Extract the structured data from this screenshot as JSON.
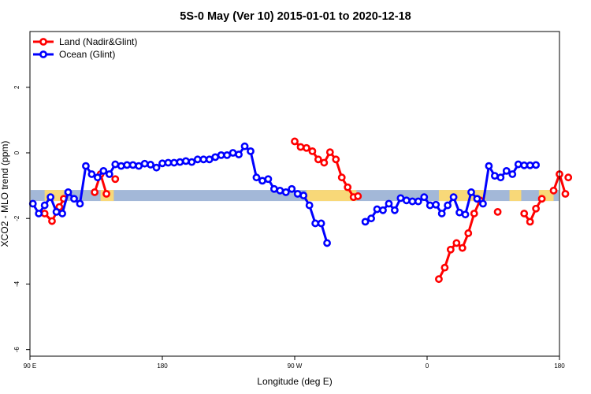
{
  "chart_data": {
    "type": "line",
    "title": "5S-0 May (Ver 10)   2015-01-01 to 2020-12-18",
    "xlabel": "Longitude (deg E)",
    "ylabel": "XCO2 - MLO trend (ppm)",
    "xlim": [
      90,
      450
    ],
    "ylim": [
      -6.2,
      3.7
    ],
    "x_ticks": [
      {
        "value": 90,
        "label": "90 E"
      },
      {
        "value": 180,
        "label": "180"
      },
      {
        "value": 270,
        "label": "90 W"
      },
      {
        "value": 360,
        "label": "0"
      },
      {
        "value": 450,
        "label": "180"
      }
    ],
    "y_ticks": [
      {
        "value": -6,
        "label": "-6"
      },
      {
        "value": -4,
        "label": "-4"
      },
      {
        "value": -2,
        "label": "-2"
      },
      {
        "value": 0,
        "label": "0"
      },
      {
        "value": 2,
        "label": "2"
      }
    ],
    "grid": false,
    "legend_position": "top-left",
    "band": {
      "y": -1.3,
      "base_color": "#a3b8d8",
      "land_color": "#f8d878",
      "land_segments": [
        [
          100,
          113
        ],
        [
          138,
          147
        ],
        [
          278,
          312
        ],
        [
          368,
          400
        ],
        [
          416,
          424
        ],
        [
          436,
          446
        ]
      ]
    },
    "series": [
      {
        "name": "Land (Nadir&Glint)",
        "color": "#ff0000",
        "segments": [
          [
            [
              100,
              -1.85
            ],
            [
              105,
              -2.08
            ],
            [
              110,
              -1.65
            ],
            [
              113,
              -1.4
            ]
          ],
          [
            [
              134,
              -1.2
            ],
            [
              138,
              -0.65
            ],
            [
              142,
              -1.25
            ]
          ],
          [
            [
              148,
              -0.8
            ]
          ],
          [
            [
              270,
              0.35
            ],
            [
              274,
              0.18
            ],
            [
              278,
              0.15
            ],
            [
              282,
              0.05
            ],
            [
              286,
              -0.2
            ],
            [
              290,
              -0.3
            ],
            [
              294,
              0.02
            ],
            [
              298,
              -0.2
            ],
            [
              302,
              -0.75
            ],
            [
              306,
              -1.05
            ],
            [
              310,
              -1.35
            ],
            [
              313,
              -1.32
            ]
          ],
          [
            [
              368,
              -3.85
            ],
            [
              372,
              -3.5
            ],
            [
              376,
              -2.95
            ],
            [
              380,
              -2.75
            ],
            [
              384,
              -2.9
            ],
            [
              388,
              -2.45
            ],
            [
              392,
              -1.85
            ],
            [
              396,
              -1.45
            ]
          ],
          [
            [
              408,
              -1.8
            ]
          ],
          [
            [
              426,
              -1.85
            ],
            [
              430,
              -2.1
            ],
            [
              434,
              -1.7
            ],
            [
              438,
              -1.4
            ]
          ],
          [
            [
              446,
              -1.15
            ],
            [
              450,
              -0.65
            ],
            [
              454,
              -1.25
            ]
          ],
          [
            [
              456,
              -0.75
            ]
          ]
        ]
      },
      {
        "name": "Ocean (Glint)",
        "color": "#0000ff",
        "segments": [
          [
            [
              92,
              -1.55
            ],
            [
              96,
              -1.85
            ],
            [
              100,
              -1.6
            ],
            [
              104,
              -1.35
            ],
            [
              108,
              -1.8
            ],
            [
              112,
              -1.85
            ],
            [
              116,
              -1.2
            ],
            [
              120,
              -1.4
            ],
            [
              124,
              -1.55
            ],
            [
              128,
              -0.4
            ],
            [
              132,
              -0.65
            ],
            [
              136,
              -0.75
            ],
            [
              140,
              -0.55
            ],
            [
              144,
              -0.65
            ],
            [
              148,
              -0.35
            ],
            [
              152,
              -0.4
            ],
            [
              156,
              -0.37
            ],
            [
              160,
              -0.37
            ],
            [
              164,
              -0.4
            ],
            [
              168,
              -0.33
            ],
            [
              172,
              -0.36
            ],
            [
              176,
              -0.45
            ],
            [
              180,
              -0.32
            ],
            [
              184,
              -0.3
            ],
            [
              188,
              -0.3
            ],
            [
              192,
              -0.28
            ],
            [
              196,
              -0.25
            ],
            [
              200,
              -0.28
            ],
            [
              204,
              -0.2
            ],
            [
              208,
              -0.2
            ],
            [
              212,
              -0.2
            ],
            [
              216,
              -0.13
            ],
            [
              220,
              -0.07
            ],
            [
              224,
              -0.07
            ],
            [
              228,
              0
            ],
            [
              232,
              -0.05
            ],
            [
              236,
              0.2
            ],
            [
              240,
              0.05
            ],
            [
              244,
              -0.75
            ],
            [
              248,
              -0.85
            ],
            [
              252,
              -0.8
            ],
            [
              256,
              -1.1
            ],
            [
              260,
              -1.15
            ],
            [
              264,
              -1.2
            ],
            [
              268,
              -1.1
            ],
            [
              272,
              -1.25
            ],
            [
              276,
              -1.3
            ],
            [
              280,
              -1.6
            ],
            [
              284,
              -2.15
            ],
            [
              288,
              -2.15
            ],
            [
              292,
              -2.75
            ]
          ],
          [
            [
              318,
              -2.1
            ],
            [
              322,
              -2.0
            ],
            [
              326,
              -1.72
            ],
            [
              330,
              -1.75
            ],
            [
              334,
              -1.55
            ],
            [
              338,
              -1.75
            ],
            [
              342,
              -1.38
            ],
            [
              346,
              -1.45
            ],
            [
              350,
              -1.48
            ],
            [
              354,
              -1.48
            ],
            [
              358,
              -1.35
            ],
            [
              362,
              -1.6
            ],
            [
              366,
              -1.58
            ],
            [
              370,
              -1.85
            ],
            [
              374,
              -1.6
            ],
            [
              378,
              -1.35
            ],
            [
              382,
              -1.82
            ],
            [
              386,
              -1.88
            ],
            [
              390,
              -1.2
            ],
            [
              394,
              -1.4
            ],
            [
              398,
              -1.55
            ],
            [
              402,
              -0.4
            ],
            [
              406,
              -0.7
            ],
            [
              410,
              -0.75
            ],
            [
              414,
              -0.55
            ],
            [
              418,
              -0.65
            ],
            [
              422,
              -0.35
            ],
            [
              426,
              -0.38
            ],
            [
              430,
              -0.38
            ],
            [
              434,
              -0.37
            ]
          ]
        ]
      }
    ]
  }
}
